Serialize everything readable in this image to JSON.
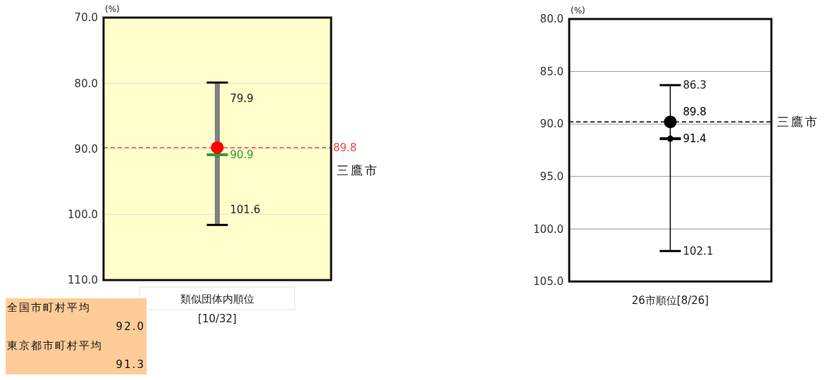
{
  "chart_data": [
    {
      "type": "scatter",
      "ylabel": "(%)",
      "categories": [
        "類似団体内順位\n[10/32]"
      ],
      "ylim": [
        110,
        70
      ],
      "yticks": [
        {
          "value": 70,
          "label": "70.0"
        },
        {
          "value": 80,
          "label": "80.0"
        },
        {
          "value": 90,
          "label": "90.0"
        },
        {
          "value": 100,
          "label": "100.0"
        },
        {
          "value": 110,
          "label": "110.0"
        }
      ],
      "grid": "y",
      "series": [
        {
          "type": "scatter",
          "values": [
            90.9
          ],
          "errors": [
            [
              79.9,
              101.6
            ]
          ],
          "color": "#339933",
          "value_labels": [
            "90.9"
          ]
        },
        {
          "type": "scatter",
          "values": [
            89.8
          ],
          "color": "#ff0000",
          "marker": "circle"
        }
      ],
      "ref_lines": [
        {
          "axis": "y",
          "value": 89.8,
          "label": "89.8",
          "color": "#ff4444",
          "line_style": "dashed"
        }
      ],
      "annotations": [
        {
          "text": "79.9",
          "x": "類似団体内順位\n[10/32]",
          "y": 79.9
        },
        {
          "text": "101.6",
          "x": "類似団体内順位\n[10/32]",
          "y": 101.6
        },
        "三鷹市",
        "全国市町村平均\n92.0",
        "東京都市町村平均\n91.3"
      ]
    },
    {
      "type": "scatter",
      "ylabel": "(%)",
      "categories": [
        "26市順位[8/26]"
      ],
      "ylim": [
        105,
        80
      ],
      "yticks": [
        {
          "value": 80,
          "label": "80.0"
        },
        {
          "value": 85,
          "label": "85.0"
        },
        {
          "value": 90,
          "label": "90.0"
        },
        {
          "value": 95,
          "label": "95.0"
        },
        {
          "value": 100,
          "label": "100.0"
        },
        {
          "value": 105,
          "label": "105.0"
        }
      ],
      "grid": "y",
      "series": [
        {
          "type": "scatter",
          "values": [
            91.4
          ],
          "errors": [
            [
              86.3,
              102.1
            ]
          ],
          "color": "#000000",
          "value_labels": [
            "91.4"
          ]
        },
        {
          "type": "scatter",
          "values": [
            89.8
          ],
          "color": "#000000",
          "marker": "circle",
          "value_labels": [
            "89.8"
          ]
        }
      ],
      "ref_lines": [
        {
          "axis": "y",
          "value": 89.8,
          "label": "三鷹市",
          "color": "#000000",
          "line_style": "dashed"
        }
      ],
      "annotations": [
        {
          "text": "86.3",
          "x": "26市順位[8/26]",
          "y": 86.3
        },
        {
          "text": "102.1",
          "x": "26市順位[8/26]",
          "y": 102.1
        }
      ]
    }
  ]
}
